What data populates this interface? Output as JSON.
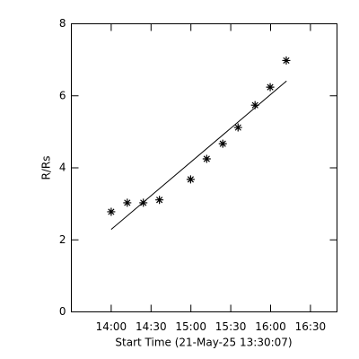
{
  "chart_data": {
    "type": "scatter",
    "xlabel": "Start Time (21-May-25 13:30:07)",
    "ylabel": "R/Rs",
    "xlim": [
      0,
      200
    ],
    "ylim": [
      0,
      8
    ],
    "xticks": [
      {
        "value": 30,
        "label": "14:00"
      },
      {
        "value": 60,
        "label": "14:30"
      },
      {
        "value": 90,
        "label": "15:00"
      },
      {
        "value": 120,
        "label": "15:30"
      },
      {
        "value": 150,
        "label": "16:00"
      },
      {
        "value": 180,
        "label": "16:30"
      }
    ],
    "yticks": [
      0,
      2,
      4,
      6,
      8
    ],
    "color": "#000000",
    "series": [
      {
        "marker": "asterisk",
        "x": [
          30,
          42.1,
          54.2,
          66.3,
          89.8,
          101.9,
          114,
          125.5,
          138.3,
          149.7,
          161.8
        ],
        "values": [
          2.78,
          3.03,
          3.03,
          3.11,
          3.68,
          4.25,
          4.67,
          5.12,
          5.74,
          6.24,
          6.98
        ]
      },
      {
        "marker": "line",
        "x": [
          30,
          162
        ],
        "values": [
          2.29,
          6.41
        ]
      }
    ]
  }
}
